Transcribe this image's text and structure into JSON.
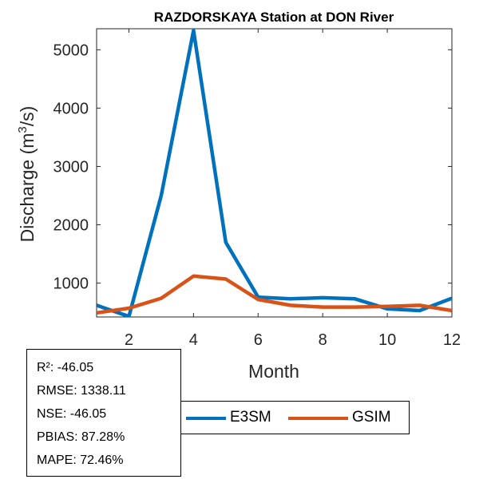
{
  "chart_data": {
    "type": "line",
    "title": "RAZDORSKAYA  Station at  DON  River",
    "xlabel": "Month",
    "ylabel_main": "Discharge (m",
    "ylabel_sup": "3",
    "ylabel_end": "/s)",
    "xlim": [
      1,
      12
    ],
    "ylim": [
      420,
      5360
    ],
    "xticks": [
      2,
      4,
      6,
      8,
      10,
      12
    ],
    "yticks": [
      1000,
      2000,
      3000,
      4000,
      5000
    ],
    "x": [
      1,
      2,
      3,
      4,
      5,
      6,
      7,
      8,
      9,
      10,
      11,
      12
    ],
    "series": [
      {
        "name": "E3SM",
        "color": "#0072BD",
        "values": [
          620,
          430,
          2500,
          5330,
          1700,
          760,
          730,
          750,
          730,
          560,
          530,
          740
        ]
      },
      {
        "name": "GSIM",
        "color": "#D95319",
        "values": [
          490,
          570,
          740,
          1120,
          1070,
          720,
          620,
          590,
          590,
          600,
          620,
          530
        ]
      }
    ],
    "grid": false,
    "legend_position": "bottom"
  },
  "stats": {
    "r2": "R²: -46.05",
    "rmse": "RMSE: 1338.11",
    "nse": "NSE: -46.05",
    "pbias": "PBIAS: 87.28%",
    "mape": "MAPE: 72.46%"
  }
}
